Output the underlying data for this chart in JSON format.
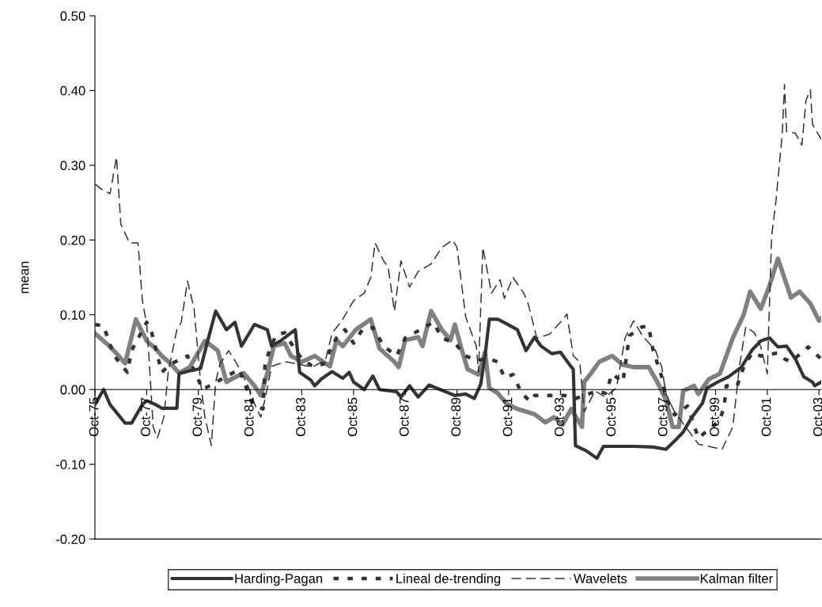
{
  "chart_data": {
    "type": "line",
    "ylabel": "mean",
    "xlim": [
      "1975-10",
      "2003-11"
    ],
    "ylim": [
      -0.2,
      0.5
    ],
    "yticks": [
      {
        "value": -0.2,
        "label": "-0.20"
      },
      {
        "value": -0.1,
        "label": "-0.10"
      },
      {
        "value": 0,
        "label": "0.00"
      },
      {
        "value": 0.1,
        "label": "0.10"
      },
      {
        "value": 0.2,
        "label": "0.20"
      },
      {
        "value": 0.3,
        "label": "0.30"
      },
      {
        "value": 0.4,
        "label": "0.40"
      },
      {
        "value": 0.5,
        "label": "0.50"
      }
    ],
    "xticks": [
      {
        "value": "1975-10",
        "label": "Oct-75"
      },
      {
        "value": "1977-10",
        "label": "Oct-77"
      },
      {
        "value": "1979-10",
        "label": "Oct-79"
      },
      {
        "value": "1981-10",
        "label": "Oct-81"
      },
      {
        "value": "1983-10",
        "label": "Oct-83"
      },
      {
        "value": "1985-10",
        "label": "Oct-85"
      },
      {
        "value": "1987-10",
        "label": "Oct-87"
      },
      {
        "value": "1989-10",
        "label": "Oct-89"
      },
      {
        "value": "1991-10",
        "label": "Oct-91"
      },
      {
        "value": "1993-10",
        "label": "Oct-93"
      },
      {
        "value": "1995-10",
        "label": "Oct-95"
      },
      {
        "value": "1997-10",
        "label": "Oct-97"
      },
      {
        "value": "1999-10",
        "label": "Oct-99"
      },
      {
        "value": "2001-10",
        "label": "Oct-01"
      },
      {
        "value": "2003-10",
        "label": "Oct-03"
      }
    ],
    "grid": false,
    "legend": "bottom",
    "marker": "none",
    "series": [
      {
        "name": "Harding-Pagan",
        "color": "#333333",
        "line_style": "solid",
        "x": [
          "1975-10",
          "1976-02",
          "1976-05",
          "1976-12",
          "1977-03",
          "1977-08",
          "1977-10",
          "1978-02",
          "1978-05",
          "1978-12",
          "1979-01",
          "1979-06",
          "1979-11",
          "1980-02",
          "1980-06",
          "1980-11",
          "1981-03",
          "1981-06",
          "1981-12",
          "1982-06",
          "1982-08",
          "1982-12",
          "1983-07",
          "1983-09",
          "1984-02",
          "1984-04",
          "1984-07",
          "1984-12",
          "1985-05",
          "1985-08",
          "1985-10",
          "1986-03",
          "1986-07",
          "1986-10",
          "1987-06",
          "1987-08",
          "1987-12",
          "1988-04",
          "1988-09",
          "1989-03",
          "1989-09",
          "1990-02",
          "1990-06",
          "1990-09",
          "1990-11",
          "1991-01",
          "1991-05",
          "1991-09",
          "1992-02",
          "1992-06",
          "1992-10",
          "1993-01",
          "1993-06",
          "1993-10",
          "1994-02",
          "1994-04",
          "1994-05",
          "1994-10",
          "1995-03",
          "1995-06",
          "1996-08",
          "1997-05",
          "1997-11",
          "1998-03",
          "1998-07",
          "1998-11",
          "1999-04",
          "1999-06",
          "1999-11",
          "2000-04",
          "2000-10",
          "2001-03",
          "2001-07",
          "2001-11",
          "2002-03",
          "2002-07",
          "2002-11",
          "2003-03",
          "2003-07",
          "2003-08",
          "2003-11"
        ],
        "values": [
          -0.02,
          0.0,
          -0.02,
          -0.045,
          -0.045,
          -0.02,
          -0.015,
          -0.02,
          -0.025,
          -0.025,
          0.021,
          0.025,
          0.028,
          0.062,
          0.105,
          0.08,
          0.09,
          0.058,
          0.087,
          0.08,
          0.058,
          0.065,
          0.08,
          0.023,
          0.013,
          0.005,
          0.014,
          0.024,
          0.015,
          0.023,
          0.01,
          0.0,
          0.018,
          0.0,
          -0.003,
          -0.01,
          0.005,
          -0.01,
          0.006,
          -0.001,
          -0.008,
          -0.006,
          -0.012,
          0.007,
          0.045,
          0.094,
          0.094,
          0.088,
          0.08,
          0.052,
          0.07,
          0.058,
          0.048,
          0.05,
          0.034,
          0.027,
          -0.075,
          -0.082,
          -0.092,
          -0.076,
          -0.076,
          -0.077,
          -0.08,
          -0.069,
          -0.057,
          -0.037,
          -0.018,
          0.002,
          0.01,
          0.017,
          0.03,
          0.053,
          0.065,
          0.069,
          0.057,
          0.058,
          0.041,
          0.017,
          0.01,
          0.005,
          0.01
        ]
      },
      {
        "name": "Lineal de-trending",
        "color": "#333333",
        "line_style": "dotted",
        "x": [
          "1975-10",
          "1976-02",
          "1976-05",
          "1976-08",
          "1977-01",
          "1977-03",
          "1977-10",
          "1977-12",
          "1978-05",
          "1978-09",
          "1979-05",
          "1979-12",
          "1981-05",
          "1981-11",
          "1982-04",
          "1982-05",
          "1982-10",
          "1983-02",
          "1983-05",
          "1983-10",
          "1984-03",
          "1984-08",
          "1985-02",
          "1985-06",
          "1985-10",
          "1986-02",
          "1986-07",
          "1986-12",
          "1987-06",
          "1987-10",
          "1988-05",
          "1988-11",
          "1989-03",
          "1989-09",
          "1990-02",
          "1990-07",
          "1991-01",
          "1991-05",
          "1991-08",
          "1991-12",
          "1992-04",
          "1992-08",
          "1992-10",
          "1993-12",
          "1994-05",
          "1995-03",
          "1995-07",
          "1995-10",
          "1996-03",
          "1996-06",
          "1996-12",
          "1997-03",
          "1997-05",
          "1997-09",
          "1997-11",
          "1998-03",
          "1998-09",
          "1999-02",
          "1999-12",
          "2000-02",
          "2000-03",
          "2000-08",
          "2000-11",
          "2001-03",
          "2001-07",
          "2002-03",
          "2002-06",
          "2002-09",
          "2003-05",
          "2003-11"
        ],
        "values": [
          0.087,
          0.085,
          0.06,
          0.041,
          0.023,
          0.052,
          0.09,
          0.08,
          0.023,
          0.034,
          0.045,
          0.0,
          0.027,
          -0.019,
          -0.026,
          0.037,
          0.073,
          0.076,
          0.062,
          0.041,
          0.031,
          0.034,
          0.069,
          0.08,
          0.062,
          0.08,
          0.083,
          0.058,
          0.045,
          0.069,
          0.08,
          0.09,
          0.069,
          0.062,
          0.045,
          0.039,
          0.041,
          0.037,
          0.016,
          0.02,
          -0.005,
          -0.016,
          -0.008,
          -0.008,
          -0.012,
          -0.002,
          -0.005,
          0.021,
          0.01,
          0.072,
          0.084,
          0.084,
          0.053,
          0.017,
          -0.01,
          -0.034,
          -0.022,
          -0.065,
          -0.041,
          -0.022,
          0.005,
          0.005,
          0.03,
          0.049,
          0.045,
          0.049,
          0.041,
          0.037,
          0.057,
          0.041
        ]
      },
      {
        "name": "Wavelets",
        "color": "#333333",
        "line_style": "dashed",
        "x": [
          "1975-10",
          "1976-01",
          "1976-05",
          "1976-08",
          "1976-10",
          "1977-02",
          "1977-06",
          "1977-08",
          "1977-10",
          "1977-11",
          "1978-01",
          "1978-03",
          "1978-06",
          "1978-08",
          "1978-12",
          "1979-02",
          "1979-05",
          "1979-08",
          "1979-11",
          "1980-01",
          "1980-04",
          "1980-06",
          "1980-08",
          "1980-12",
          "1981-04",
          "1981-09",
          "1981-12",
          "1982-03",
          "1982-05",
          "1982-08",
          "1982-11",
          "1983-03",
          "1983-08",
          "1984-03",
          "1984-09",
          "1984-12",
          "1985-05",
          "1985-10",
          "1986-03",
          "1986-06",
          "1986-08",
          "1986-12",
          "1987-02",
          "1987-05",
          "1987-08",
          "1987-12",
          "1988-04",
          "1988-10",
          "1989-03",
          "1989-08",
          "1989-10",
          "1990-02",
          "1990-07",
          "1990-08",
          "1990-10",
          "1991-02",
          "1991-06",
          "1991-08",
          "1991-12",
          "1992-05",
          "1992-07",
          "1992-11",
          "1993-05",
          "1993-10",
          "1994-01",
          "1994-04",
          "1994-07",
          "1994-09",
          "1995-02",
          "1995-07",
          "1995-12",
          "1996-04",
          "1996-08",
          "1996-12",
          "1997-06",
          "1997-09",
          "1997-11",
          "1998-03",
          "1999-02",
          "2000-01",
          "2000-06",
          "2000-09",
          "2000-12",
          "2001-04",
          "2001-07",
          "2001-10",
          "2001-12",
          "2002-02",
          "2002-05",
          "2002-06",
          "2002-07",
          "2002-11",
          "2003-02",
          "2003-04",
          "2003-06",
          "2003-07",
          "2003-11"
        ],
        "values": [
          0.275,
          0.268,
          0.262,
          0.311,
          0.221,
          0.196,
          0.196,
          0.119,
          0.087,
          0.045,
          -0.05,
          -0.065,
          -0.037,
          0.023,
          0.08,
          0.09,
          0.145,
          0.108,
          0.01,
          -0.037,
          -0.075,
          0.01,
          0.034,
          0.052,
          0.034,
          0.005,
          -0.019,
          -0.037,
          -0.012,
          0.031,
          0.034,
          0.037,
          0.034,
          0.03,
          0.04,
          0.075,
          0.094,
          0.119,
          0.129,
          0.15,
          0.196,
          0.172,
          0.164,
          0.105,
          0.172,
          0.137,
          0.158,
          0.168,
          0.19,
          0.2,
          0.19,
          0.097,
          0.058,
          0.023,
          0.19,
          0.129,
          0.147,
          0.122,
          0.15,
          0.129,
          0.115,
          0.069,
          0.074,
          0.09,
          0.101,
          0.045,
          0.037,
          -0.03,
          -0.002,
          -0.01,
          0.002,
          0.069,
          0.092,
          0.072,
          0.053,
          0.03,
          -0.006,
          -0.03,
          -0.073,
          -0.08,
          -0.05,
          0.03,
          0.084,
          0.076,
          0.057,
          0.021,
          0.205,
          0.253,
          0.343,
          0.408,
          0.345,
          0.343,
          0.327,
          0.387,
          0.401,
          0.355,
          0.335
        ]
      },
      {
        "name": "Kalman filter",
        "color": "#808080",
        "line_style": "solid",
        "x": [
          "1975-10",
          "1976-04",
          "1976-09",
          "1976-12",
          "1977-05",
          "1977-10",
          "1978-02",
          "1978-05",
          "1978-09",
          "1979-01",
          "1979-06",
          "1980-01",
          "1980-07",
          "1980-11",
          "1981-02",
          "1981-07",
          "1981-12",
          "1982-03",
          "1982-06",
          "1982-09",
          "1983-02",
          "1983-05",
          "1983-10",
          "1984-04",
          "1984-11",
          "1985-02",
          "1985-05",
          "1985-11",
          "1986-06",
          "1986-10",
          "1987-05",
          "1987-07",
          "1987-10",
          "1988-04",
          "1988-06",
          "1988-09",
          "1988-10",
          "1989-03",
          "1989-07",
          "1989-09",
          "1989-12",
          "1990-03",
          "1990-08",
          "1990-11",
          "1991-01",
          "1991-05",
          "1991-09",
          "1992-02",
          "1992-10",
          "1993-03",
          "1993-07",
          "1993-11",
          "1994-03",
          "1994-08",
          "1994-09",
          "1994-12",
          "1995-04",
          "1995-10",
          "1996-03",
          "1996-08",
          "1997-03",
          "1997-07",
          "1997-11",
          "1998-02",
          "1998-05",
          "1998-07",
          "1998-12",
          "1999-02",
          "1999-07",
          "1999-12",
          "2000-06",
          "2000-11",
          "2001-02",
          "2001-07",
          "2001-11",
          "2002-03",
          "2002-09",
          "2003-01",
          "2003-06",
          "2003-10",
          "2003-11"
        ],
        "values": [
          0.075,
          0.06,
          0.045,
          0.035,
          0.094,
          0.065,
          0.055,
          0.045,
          0.035,
          0.022,
          0.03,
          0.065,
          0.052,
          0.01,
          0.015,
          0.022,
          0.005,
          -0.008,
          0.022,
          0.058,
          0.062,
          0.045,
          0.037,
          0.045,
          0.031,
          0.066,
          0.058,
          0.08,
          0.094,
          0.055,
          0.037,
          0.03,
          0.066,
          0.07,
          0.058,
          0.094,
          0.105,
          0.08,
          0.066,
          0.087,
          0.055,
          0.027,
          0.02,
          0.05,
          0.002,
          -0.005,
          -0.019,
          -0.026,
          -0.033,
          -0.044,
          -0.037,
          -0.047,
          -0.026,
          -0.05,
          0.01,
          0.021,
          0.037,
          0.045,
          0.033,
          0.03,
          0.03,
          0.01,
          -0.014,
          -0.05,
          -0.05,
          -0.002,
          0.005,
          -0.006,
          0.014,
          0.021,
          0.069,
          0.1,
          0.131,
          0.108,
          0.139,
          0.175,
          0.123,
          0.131,
          0.115,
          0.092,
          0.095
        ]
      }
    ]
  }
}
